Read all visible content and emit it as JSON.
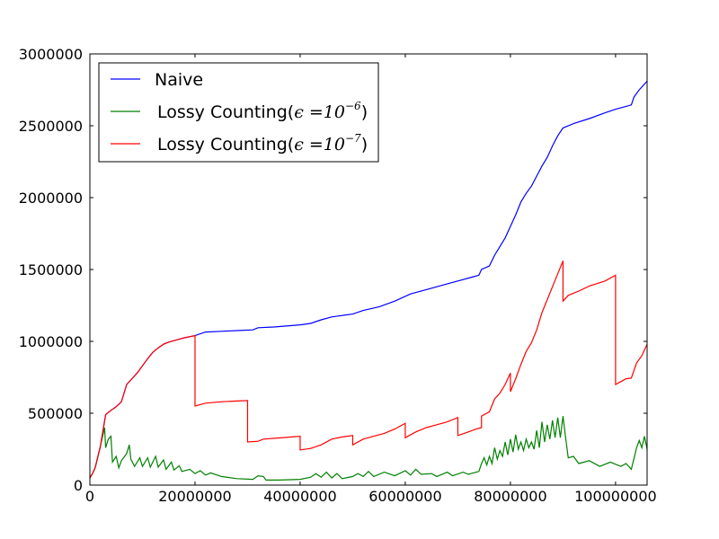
{
  "chart_data": {
    "type": "line",
    "title": "",
    "xlabel": "",
    "ylabel": "",
    "xlim": [
      0,
      106000000
    ],
    "ylim": [
      0,
      3000000
    ],
    "x_ticks": [
      0,
      20000000,
      40000000,
      60000000,
      80000000,
      100000000
    ],
    "x_tick_labels": [
      "0",
      "20000000",
      "40000000",
      "60000000",
      "80000000",
      "100000000"
    ],
    "y_ticks": [
      0,
      500000,
      1000000,
      1500000,
      2000000,
      2500000,
      3000000
    ],
    "y_tick_labels": [
      "0",
      "500000",
      "1000000",
      "1500000",
      "2000000",
      "2500000",
      "3000000"
    ],
    "grid": false,
    "legend_position": "top-left",
    "legend": [
      {
        "label": "Naive",
        "color": "#0000ff"
      },
      {
        "label": "Lossy Counting",
        "epsilon_base": "10",
        "epsilon_exp": "−6",
        "color": "#008000"
      },
      {
        "label": "Lossy Counting",
        "epsilon_base": "10",
        "epsilon_exp": "−7",
        "color": "#ff0000"
      }
    ],
    "epsilon_symbol": "ϵ",
    "series": [
      {
        "name": "Naive",
        "color": "#0000ff",
        "points": [
          [
            0,
            50000
          ],
          [
            500000,
            80000
          ],
          [
            1000000,
            120000
          ],
          [
            2000000,
            270000
          ],
          [
            3000000,
            490000
          ],
          [
            4000000,
            520000
          ],
          [
            5000000,
            545000
          ],
          [
            6000000,
            580000
          ],
          [
            7000000,
            700000
          ],
          [
            8000000,
            740000
          ],
          [
            9000000,
            780000
          ],
          [
            10000000,
            830000
          ],
          [
            11000000,
            880000
          ],
          [
            12000000,
            925000
          ],
          [
            13000000,
            955000
          ],
          [
            14000000,
            980000
          ],
          [
            15000000,
            995000
          ],
          [
            16000000,
            1005000
          ],
          [
            17000000,
            1015000
          ],
          [
            18000000,
            1025000
          ],
          [
            20000000,
            1040000
          ],
          [
            22000000,
            1065000
          ],
          [
            25000000,
            1070000
          ],
          [
            28000000,
            1075000
          ],
          [
            31000000,
            1080000
          ],
          [
            32000000,
            1095000
          ],
          [
            35000000,
            1100000
          ],
          [
            40000000,
            1115000
          ],
          [
            42000000,
            1125000
          ],
          [
            44000000,
            1150000
          ],
          [
            46000000,
            1170000
          ],
          [
            48000000,
            1180000
          ],
          [
            50000000,
            1190000
          ],
          [
            52000000,
            1215000
          ],
          [
            55000000,
            1240000
          ],
          [
            58000000,
            1280000
          ],
          [
            61000000,
            1330000
          ],
          [
            64000000,
            1360000
          ],
          [
            67000000,
            1390000
          ],
          [
            70000000,
            1420000
          ],
          [
            73000000,
            1450000
          ],
          [
            74000000,
            1460000
          ],
          [
            74500000,
            1500000
          ],
          [
            76000000,
            1525000
          ],
          [
            77000000,
            1600000
          ],
          [
            78000000,
            1660000
          ],
          [
            79000000,
            1720000
          ],
          [
            80000000,
            1800000
          ],
          [
            81000000,
            1880000
          ],
          [
            82000000,
            1970000
          ],
          [
            83000000,
            2030000
          ],
          [
            84000000,
            2080000
          ],
          [
            85000000,
            2150000
          ],
          [
            86000000,
            2220000
          ],
          [
            87000000,
            2280000
          ],
          [
            88000000,
            2360000
          ],
          [
            89000000,
            2430000
          ],
          [
            90000000,
            2485000
          ],
          [
            92000000,
            2515000
          ],
          [
            95000000,
            2550000
          ],
          [
            98000000,
            2590000
          ],
          [
            100000000,
            2615000
          ],
          [
            102000000,
            2635000
          ],
          [
            103000000,
            2645000
          ],
          [
            103500000,
            2700000
          ],
          [
            104500000,
            2750000
          ],
          [
            106000000,
            2810000
          ]
        ]
      },
      {
        "name": "Lossy Counting(ϵ=10^−6)",
        "color": "#008000",
        "points": [
          [
            0,
            50000
          ],
          [
            500000,
            80000
          ],
          [
            1000000,
            120000
          ],
          [
            2000000,
            270000
          ],
          [
            2800000,
            400000
          ],
          [
            3000000,
            260000
          ],
          [
            3500000,
            320000
          ],
          [
            4000000,
            340000
          ],
          [
            4300000,
            160000
          ],
          [
            5000000,
            200000
          ],
          [
            5500000,
            120000
          ],
          [
            6000000,
            170000
          ],
          [
            7000000,
            220000
          ],
          [
            7500000,
            280000
          ],
          [
            7800000,
            180000
          ],
          [
            8500000,
            130000
          ],
          [
            9500000,
            190000
          ],
          [
            10000000,
            130000
          ],
          [
            11000000,
            190000
          ],
          [
            11500000,
            125000
          ],
          [
            12500000,
            200000
          ],
          [
            13000000,
            125000
          ],
          [
            14000000,
            175000
          ],
          [
            14500000,
            110000
          ],
          [
            15500000,
            160000
          ],
          [
            16000000,
            105000
          ],
          [
            17000000,
            135000
          ],
          [
            17500000,
            95000
          ],
          [
            19000000,
            110000
          ],
          [
            20000000,
            80000
          ],
          [
            21000000,
            100000
          ],
          [
            22000000,
            70000
          ],
          [
            23000000,
            85000
          ],
          [
            25000000,
            60000
          ],
          [
            28000000,
            45000
          ],
          [
            31000000,
            40000
          ],
          [
            32000000,
            65000
          ],
          [
            33000000,
            60000
          ],
          [
            33500000,
            35000
          ],
          [
            36000000,
            35000
          ],
          [
            40000000,
            40000
          ],
          [
            42000000,
            55000
          ],
          [
            43000000,
            80000
          ],
          [
            44000000,
            55000
          ],
          [
            45000000,
            90000
          ],
          [
            46000000,
            50000
          ],
          [
            47000000,
            80000
          ],
          [
            48000000,
            45000
          ],
          [
            50000000,
            60000
          ],
          [
            51000000,
            80000
          ],
          [
            52000000,
            60000
          ],
          [
            53000000,
            95000
          ],
          [
            54000000,
            60000
          ],
          [
            56000000,
            90000
          ],
          [
            58000000,
            65000
          ],
          [
            60000000,
            100000
          ],
          [
            61000000,
            70000
          ],
          [
            62000000,
            110000
          ],
          [
            63000000,
            75000
          ],
          [
            65000000,
            80000
          ],
          [
            66000000,
            60000
          ],
          [
            68000000,
            90000
          ],
          [
            69000000,
            65000
          ],
          [
            71000000,
            90000
          ],
          [
            72000000,
            75000
          ],
          [
            74000000,
            95000
          ],
          [
            74500000,
            150000
          ],
          [
            75000000,
            190000
          ],
          [
            75500000,
            140000
          ],
          [
            76000000,
            200000
          ],
          [
            76500000,
            150000
          ],
          [
            77000000,
            260000
          ],
          [
            77500000,
            180000
          ],
          [
            78000000,
            240000
          ],
          [
            78500000,
            200000
          ],
          [
            79000000,
            300000
          ],
          [
            79500000,
            210000
          ],
          [
            80000000,
            320000
          ],
          [
            80500000,
            230000
          ],
          [
            81000000,
            350000
          ],
          [
            81500000,
            250000
          ],
          [
            82000000,
            300000
          ],
          [
            82500000,
            240000
          ],
          [
            83000000,
            320000
          ],
          [
            83500000,
            260000
          ],
          [
            84000000,
            300000
          ],
          [
            84500000,
            250000
          ],
          [
            85000000,
            380000
          ],
          [
            85500000,
            260000
          ],
          [
            86000000,
            440000
          ],
          [
            86500000,
            300000
          ],
          [
            87000000,
            420000
          ],
          [
            87500000,
            320000
          ],
          [
            88000000,
            450000
          ],
          [
            88500000,
            330000
          ],
          [
            89000000,
            470000
          ],
          [
            89500000,
            330000
          ],
          [
            90000000,
            480000
          ],
          [
            90500000,
            330000
          ],
          [
            91000000,
            190000
          ],
          [
            92000000,
            200000
          ],
          [
            93000000,
            150000
          ],
          [
            95000000,
            170000
          ],
          [
            97000000,
            130000
          ],
          [
            99000000,
            160000
          ],
          [
            101000000,
            130000
          ],
          [
            102000000,
            150000
          ],
          [
            103000000,
            110000
          ],
          [
            104000000,
            260000
          ],
          [
            104500000,
            310000
          ],
          [
            105000000,
            260000
          ],
          [
            105500000,
            340000
          ],
          [
            106000000,
            250000
          ]
        ]
      },
      {
        "name": "Lossy Counting(ϵ=10^−7)",
        "color": "#ff0000",
        "points": [
          [
            0,
            50000
          ],
          [
            500000,
            80000
          ],
          [
            1000000,
            120000
          ],
          [
            2000000,
            270000
          ],
          [
            3000000,
            490000
          ],
          [
            4000000,
            520000
          ],
          [
            5000000,
            545000
          ],
          [
            6000000,
            580000
          ],
          [
            7000000,
            700000
          ],
          [
            8000000,
            740000
          ],
          [
            9000000,
            780000
          ],
          [
            10000000,
            830000
          ],
          [
            11000000,
            880000
          ],
          [
            12000000,
            925000
          ],
          [
            13000000,
            955000
          ],
          [
            14000000,
            980000
          ],
          [
            15000000,
            995000
          ],
          [
            16000000,
            1005000
          ],
          [
            17000000,
            1015000
          ],
          [
            18000000,
            1025000
          ],
          [
            20000000,
            1040000
          ],
          [
            20000000,
            550000
          ],
          [
            22000000,
            570000
          ],
          [
            25000000,
            580000
          ],
          [
            28000000,
            585000
          ],
          [
            30000000,
            588000
          ],
          [
            30000000,
            300000
          ],
          [
            32000000,
            305000
          ],
          [
            33000000,
            320000
          ],
          [
            36000000,
            328000
          ],
          [
            40000000,
            340000
          ],
          [
            40000000,
            245000
          ],
          [
            42000000,
            255000
          ],
          [
            44000000,
            280000
          ],
          [
            46000000,
            320000
          ],
          [
            48000000,
            335000
          ],
          [
            50000000,
            345000
          ],
          [
            50000000,
            280000
          ],
          [
            52000000,
            320000
          ],
          [
            54000000,
            340000
          ],
          [
            56000000,
            360000
          ],
          [
            58000000,
            390000
          ],
          [
            60000000,
            430000
          ],
          [
            60000000,
            330000
          ],
          [
            62000000,
            370000
          ],
          [
            64000000,
            400000
          ],
          [
            66000000,
            420000
          ],
          [
            68000000,
            440000
          ],
          [
            70000000,
            470000
          ],
          [
            70000000,
            345000
          ],
          [
            72000000,
            370000
          ],
          [
            73500000,
            390000
          ],
          [
            74500000,
            400000
          ],
          [
            74500000,
            480000
          ],
          [
            76000000,
            510000
          ],
          [
            77000000,
            600000
          ],
          [
            78000000,
            640000
          ],
          [
            79000000,
            700000
          ],
          [
            79500000,
            740000
          ],
          [
            80000000,
            780000
          ],
          [
            80000000,
            650000
          ],
          [
            81000000,
            740000
          ],
          [
            82000000,
            840000
          ],
          [
            83000000,
            930000
          ],
          [
            84000000,
            990000
          ],
          [
            85000000,
            1080000
          ],
          [
            86000000,
            1200000
          ],
          [
            87000000,
            1290000
          ],
          [
            88000000,
            1380000
          ],
          [
            89000000,
            1470000
          ],
          [
            90000000,
            1560000
          ],
          [
            90000000,
            1280000
          ],
          [
            91000000,
            1320000
          ],
          [
            93000000,
            1350000
          ],
          [
            95000000,
            1385000
          ],
          [
            98000000,
            1420000
          ],
          [
            100000000,
            1460000
          ],
          [
            100000000,
            700000
          ],
          [
            101000000,
            720000
          ],
          [
            102000000,
            740000
          ],
          [
            103000000,
            745000
          ],
          [
            104000000,
            850000
          ],
          [
            105000000,
            900000
          ],
          [
            106000000,
            980000
          ]
        ]
      }
    ]
  }
}
